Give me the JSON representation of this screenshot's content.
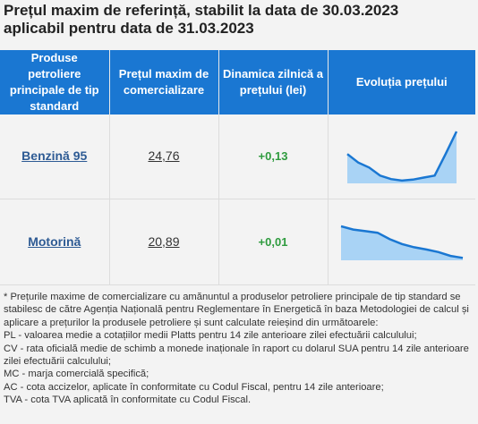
{
  "title": {
    "line1": "Prețul maxim de referință, stabilit la data de 30.03.2023",
    "line2": "aplicabil pentru data de 31.03.2023"
  },
  "table": {
    "headers": [
      "Produse petroliere principale de tip standard",
      "Prețul maxim de comercializare",
      "Dinamica zilnică a prețului (lei)",
      "Evoluția prețului"
    ],
    "rows": [
      {
        "product": "Benzină 95",
        "price": "24,76",
        "change": "+0,13",
        "trend": [
          0.55,
          0.38,
          0.28,
          0.12,
          0.05,
          0.02,
          0.04,
          0.08,
          0.12,
          0.55,
          1.0
        ]
      },
      {
        "product": "Motorină",
        "price": "20,89",
        "change": "+0,01",
        "trend": [
          1.0,
          0.9,
          0.85,
          0.8,
          0.6,
          0.45,
          0.35,
          0.28,
          0.2,
          0.08,
          0.02
        ]
      }
    ]
  },
  "colors": {
    "header_bg": "#1a77d2",
    "trend_line": "#1a77d2",
    "trend_fill": "#a9d3f5",
    "positive": "#2e9b3e"
  },
  "notes": [
    "* Prețurile maxime de comercializare cu amănuntul a produselor petroliere principale de tip standard se stabilesc de către Agenția Națională pentru Reglementare în Energetică în baza Metodologiei de calcul și aplicare a prețurilor la produsele petroliere și sunt calculate reieșind din următoarele:",
    "PL - valoarea medie a cotațiilor medii Platts pentru 14 zile anterioare zilei efectuării calculului;",
    "CV - rata oficială medie de schimb a monede inaționale în raport cu dolarul SUA pentru 14 zile anterioare zilei efectuării calculului;",
    "MC - marja comercială specifică;",
    "AC - cota accizelor, aplicate în conformitate cu Codul Fiscal, pentru 14 zile anterioare;",
    "TVA - cota TVA aplicată în conformitate cu Codul Fiscal."
  ]
}
